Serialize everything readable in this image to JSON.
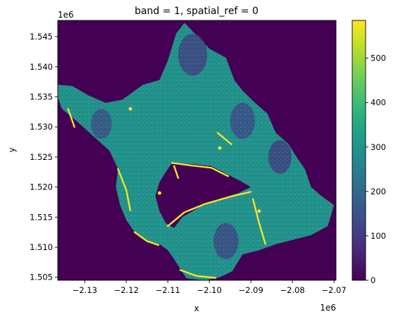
{
  "chart_data": {
    "type": "heatmap",
    "title": "band = 1, spatial_ref = 0",
    "xlabel": "x",
    "ylabel": "y",
    "x_offset_label": "1e6",
    "y_offset_label": "1e6",
    "xlim": [
      -2.1365,
      -2.0695
    ],
    "ylim": [
      1.5045,
      1.5477
    ],
    "xticks": [
      -2.13,
      -2.12,
      -2.11,
      -2.1,
      -2.09,
      -2.08,
      -2.07
    ],
    "xtick_labels": [
      "−2.13",
      "−2.12",
      "−2.11",
      "−2.10",
      "−2.09",
      "−2.08",
      "−2.07"
    ],
    "yticks": [
      1.505,
      1.51,
      1.515,
      1.52,
      1.525,
      1.53,
      1.535,
      1.54,
      1.545
    ],
    "ytick_labels": [
      "1.505",
      "1.510",
      "1.515",
      "1.520",
      "1.525",
      "1.530",
      "1.535",
      "1.540",
      "1.545"
    ],
    "colorbar": {
      "colormap": "viridis",
      "range": [
        0,
        585
      ],
      "ticks": [
        0,
        100,
        200,
        300,
        400,
        500
      ],
      "tick_labels": [
        "0",
        "100",
        "200",
        "300",
        "400",
        "500"
      ]
    },
    "background_value": 0,
    "dominant_value": 300,
    "region_outer": [
      [
        -2.1365,
        1.537
      ],
      [
        -2.133,
        1.5368
      ],
      [
        -2.129,
        1.5352
      ],
      [
        -2.125,
        1.534
      ],
      [
        -2.121,
        1.5345
      ],
      [
        -2.116,
        1.537
      ],
      [
        -2.112,
        1.5378
      ],
      [
        -2.11,
        1.541
      ],
      [
        -2.108,
        1.5455
      ],
      [
        -2.106,
        1.5473
      ],
      [
        -2.1035,
        1.5455
      ],
      [
        -2.1,
        1.543
      ],
      [
        -2.096,
        1.5415
      ],
      [
        -2.094,
        1.5378
      ],
      [
        -2.092,
        1.536
      ],
      [
        -2.089,
        1.534
      ],
      [
        -2.086,
        1.5322
      ],
      [
        -2.084,
        1.529
      ],
      [
        -2.081,
        1.5272
      ],
      [
        -2.079,
        1.525
      ],
      [
        -2.077,
        1.523
      ],
      [
        -2.0755,
        1.52
      ],
      [
        -2.073,
        1.5185
      ],
      [
        -2.07,
        1.517
      ],
      [
        -2.0715,
        1.5135
      ],
      [
        -2.0755,
        1.512
      ],
      [
        -2.08,
        1.5112
      ],
      [
        -2.084,
        1.5105
      ],
      [
        -2.088,
        1.5095
      ],
      [
        -2.092,
        1.5088
      ],
      [
        -2.0945,
        1.506
      ],
      [
        -2.0975,
        1.505
      ],
      [
        -2.101,
        1.5045
      ],
      [
        -2.1055,
        1.5048
      ],
      [
        -2.108,
        1.5075
      ],
      [
        -2.11,
        1.5095
      ],
      [
        -2.112,
        1.5105
      ],
      [
        -2.115,
        1.511
      ],
      [
        -2.118,
        1.5125
      ],
      [
        -2.12,
        1.5145
      ],
      [
        -2.1215,
        1.517
      ],
      [
        -2.1225,
        1.52
      ],
      [
        -2.122,
        1.523
      ],
      [
        -2.124,
        1.526
      ],
      [
        -2.128,
        1.5285
      ],
      [
        -2.132,
        1.531
      ],
      [
        -2.1355,
        1.533
      ],
      [
        -2.1365,
        1.535
      ]
    ],
    "region_hole": [
      [
        -2.109,
        1.524
      ],
      [
        -2.104,
        1.5238
      ],
      [
        -2.0995,
        1.5235
      ],
      [
        -2.096,
        1.5222
      ],
      [
        -2.0925,
        1.521
      ],
      [
        -2.09,
        1.52
      ],
      [
        -2.093,
        1.519
      ],
      [
        -2.0975,
        1.518
      ],
      [
        -2.102,
        1.5168
      ],
      [
        -2.1065,
        1.515
      ],
      [
        -2.1085,
        1.5132
      ],
      [
        -2.1105,
        1.514
      ],
      [
        -2.112,
        1.516
      ],
      [
        -2.113,
        1.5185
      ],
      [
        -2.112,
        1.5208
      ],
      [
        -2.1105,
        1.5225
      ]
    ],
    "high_value_features": [
      {
        "value": 580,
        "path": [
          [
            -2.11,
            1.5135
          ],
          [
            -2.106,
            1.5158
          ],
          [
            -2.101,
            1.5172
          ],
          [
            -2.095,
            1.5184
          ],
          [
            -2.09,
            1.5192
          ]
        ]
      },
      {
        "value": 580,
        "path": [
          [
            -2.109,
            1.524
          ],
          [
            -2.1045,
            1.5236
          ],
          [
            -2.0995,
            1.5232
          ],
          [
            -2.0955,
            1.5218
          ]
        ]
      },
      {
        "value": 580,
        "path": [
          [
            -2.118,
            1.5125
          ],
          [
            -2.115,
            1.511
          ],
          [
            -2.112,
            1.5103
          ]
        ]
      },
      {
        "value": 580,
        "path": [
          [
            -2.122,
            1.523
          ],
          [
            -2.12,
            1.5195
          ],
          [
            -2.119,
            1.516
          ]
        ]
      },
      {
        "value": 580,
        "path": [
          [
            -2.0895,
            1.518
          ],
          [
            -2.088,
            1.514
          ],
          [
            -2.0865,
            1.5105
          ]
        ]
      },
      {
        "value": 580,
        "path": [
          [
            -2.107,
            1.5062
          ],
          [
            -2.103,
            1.5052
          ],
          [
            -2.0985,
            1.5049
          ]
        ]
      },
      {
        "value": 580,
        "path": [
          [
            -2.134,
            1.533
          ],
          [
            -2.1325,
            1.53
          ]
        ]
      },
      {
        "value": 580,
        "path": [
          [
            -2.098,
            1.529
          ],
          [
            -2.0945,
            1.527
          ]
        ]
      },
      {
        "value": 580,
        "path": [
          [
            -2.1085,
            1.5235
          ],
          [
            -2.1075,
            1.5215
          ]
        ]
      }
    ],
    "high_value_spots": [
      {
        "value": 580,
        "x": -2.119,
        "y": 1.533
      },
      {
        "value": 580,
        "x": -2.0975,
        "y": 1.5265
      },
      {
        "value": 580,
        "x": -2.088,
        "y": 1.516
      },
      {
        "value": 580,
        "x": -2.112,
        "y": 1.519
      }
    ],
    "low_value_zones": [
      {
        "value": 90,
        "x": -2.104,
        "y": 1.542,
        "r": 0.0035
      },
      {
        "value": 110,
        "x": -2.092,
        "y": 1.531,
        "r": 0.003
      },
      {
        "value": 80,
        "x": -2.083,
        "y": 1.525,
        "r": 0.0028
      },
      {
        "value": 120,
        "x": -2.126,
        "y": 1.5305,
        "r": 0.0025
      },
      {
        "value": 100,
        "x": -2.096,
        "y": 1.511,
        "r": 0.003
      }
    ]
  }
}
